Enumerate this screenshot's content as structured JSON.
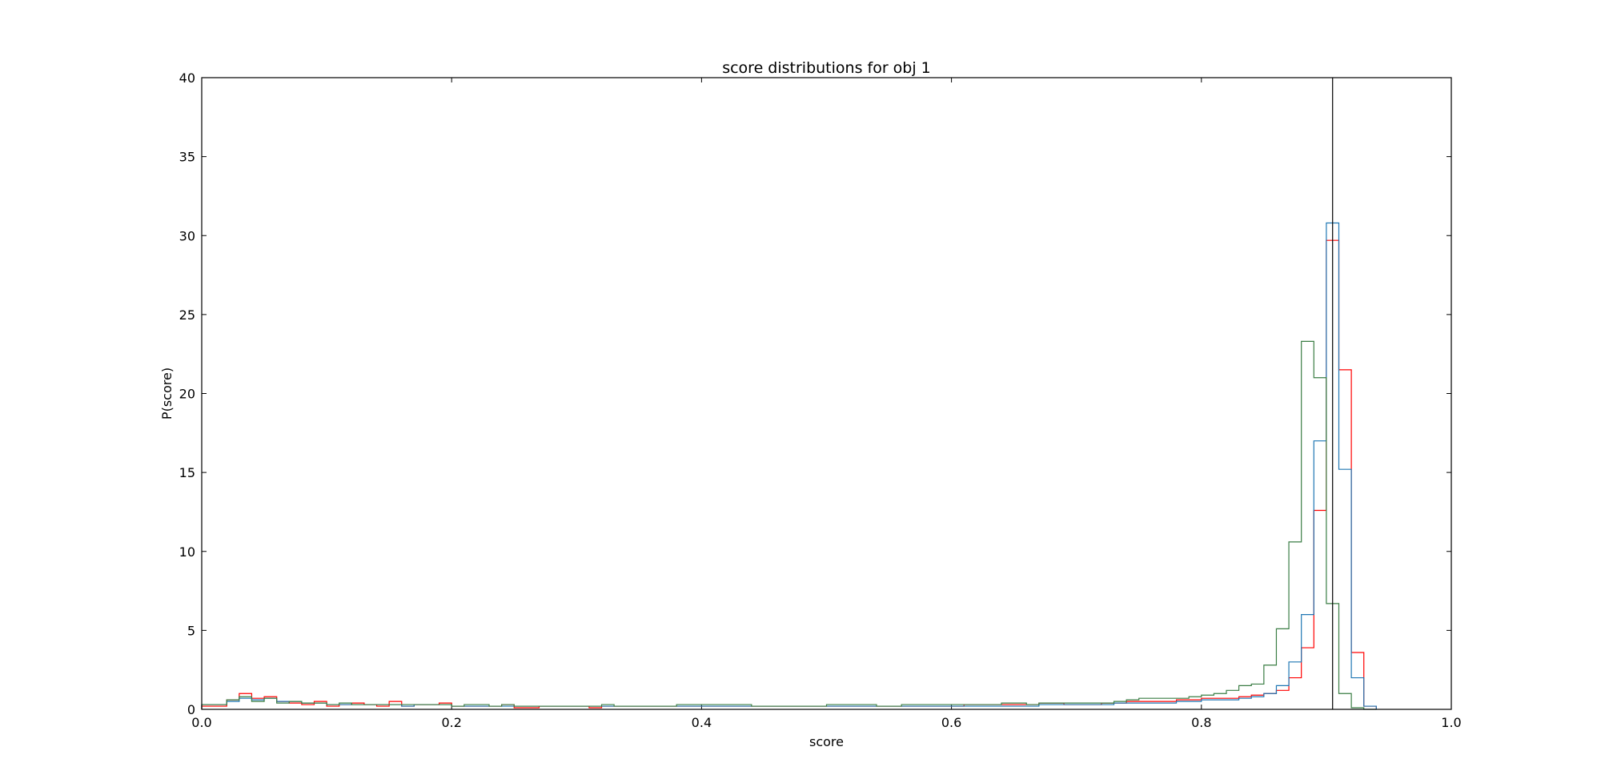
{
  "chart_data": {
    "type": "histogram",
    "title": "score distributions for obj 1",
    "xlabel": "score",
    "ylabel": "P(score)",
    "xlim": [
      0.0,
      1.0
    ],
    "ylim": [
      0,
      40
    ],
    "xticks": [
      "0.0",
      "0.2",
      "0.4",
      "0.6",
      "0.8",
      "1.0"
    ],
    "yticks": [
      "0",
      "5",
      "10",
      "15",
      "20",
      "25",
      "30",
      "35",
      "40"
    ],
    "grid": false,
    "bins": {
      "start": 0.0,
      "width": 0.01,
      "count": 94
    },
    "vline": {
      "x": 0.905,
      "color": "#000000"
    },
    "series": [
      {
        "color": "#ff0000",
        "values": [
          0.2,
          0.2,
          0.6,
          1.0,
          0.7,
          0.8,
          0.5,
          0.4,
          0.3,
          0.5,
          0.2,
          0.3,
          0.4,
          0.3,
          0.2,
          0.5,
          0.2,
          0.3,
          0.3,
          0.4,
          0.2,
          0.2,
          0.2,
          0.2,
          0.3,
          0.1,
          0.1,
          0.2,
          0.2,
          0.2,
          0.2,
          0.1,
          0.2,
          0.2,
          0.2,
          0.2,
          0.2,
          0.2,
          0.2,
          0.2,
          0.2,
          0.2,
          0.2,
          0.2,
          0.2,
          0.2,
          0.2,
          0.2,
          0.2,
          0.2,
          0.2,
          0.2,
          0.2,
          0.2,
          0.2,
          0.2,
          0.2,
          0.2,
          0.2,
          0.2,
          0.2,
          0.3,
          0.3,
          0.3,
          0.3,
          0.3,
          0.3,
          0.4,
          0.4,
          0.3,
          0.3,
          0.3,
          0.4,
          0.4,
          0.5,
          0.5,
          0.5,
          0.5,
          0.6,
          0.6,
          0.7,
          0.7,
          0.7,
          0.8,
          0.9,
          1.0,
          1.2,
          2.0,
          3.9,
          12.6,
          29.7,
          21.5,
          3.6,
          0.2
        ]
      },
      {
        "color": "#1f77b4",
        "values": [
          0.3,
          0.3,
          0.5,
          0.7,
          0.6,
          0.7,
          0.5,
          0.5,
          0.4,
          0.4,
          0.3,
          0.3,
          0.3,
          0.3,
          0.3,
          0.3,
          0.2,
          0.3,
          0.3,
          0.3,
          0.2,
          0.2,
          0.2,
          0.2,
          0.2,
          0.2,
          0.2,
          0.2,
          0.2,
          0.2,
          0.2,
          0.2,
          0.2,
          0.2,
          0.2,
          0.2,
          0.2,
          0.2,
          0.2,
          0.2,
          0.2,
          0.2,
          0.2,
          0.2,
          0.2,
          0.2,
          0.2,
          0.2,
          0.2,
          0.2,
          0.2,
          0.2,
          0.2,
          0.2,
          0.2,
          0.2,
          0.2,
          0.2,
          0.2,
          0.2,
          0.2,
          0.2,
          0.2,
          0.2,
          0.2,
          0.2,
          0.2,
          0.3,
          0.3,
          0.3,
          0.3,
          0.3,
          0.3,
          0.4,
          0.4,
          0.4,
          0.4,
          0.4,
          0.5,
          0.5,
          0.6,
          0.6,
          0.6,
          0.7,
          0.8,
          1.0,
          1.5,
          3.0,
          6.0,
          17.0,
          30.8,
          15.2,
          2.0,
          0.2
        ]
      },
      {
        "color": "#3a7d44",
        "values": [
          0.3,
          0.3,
          0.6,
          0.8,
          0.5,
          0.7,
          0.4,
          0.5,
          0.4,
          0.4,
          0.3,
          0.4,
          0.3,
          0.3,
          0.3,
          0.3,
          0.3,
          0.3,
          0.3,
          0.3,
          0.2,
          0.3,
          0.3,
          0.2,
          0.3,
          0.2,
          0.2,
          0.2,
          0.2,
          0.2,
          0.2,
          0.2,
          0.3,
          0.2,
          0.2,
          0.2,
          0.2,
          0.2,
          0.3,
          0.3,
          0.3,
          0.3,
          0.3,
          0.3,
          0.2,
          0.2,
          0.2,
          0.2,
          0.2,
          0.2,
          0.3,
          0.3,
          0.3,
          0.3,
          0.2,
          0.2,
          0.3,
          0.3,
          0.3,
          0.3,
          0.3,
          0.3,
          0.3,
          0.3,
          0.4,
          0.4,
          0.3,
          0.4,
          0.4,
          0.4,
          0.4,
          0.4,
          0.4,
          0.5,
          0.6,
          0.7,
          0.7,
          0.7,
          0.7,
          0.8,
          0.9,
          1.0,
          1.2,
          1.5,
          1.6,
          2.8,
          5.1,
          10.6,
          23.3,
          21.0,
          6.7,
          1.0,
          0.1,
          0.0
        ]
      }
    ]
  }
}
